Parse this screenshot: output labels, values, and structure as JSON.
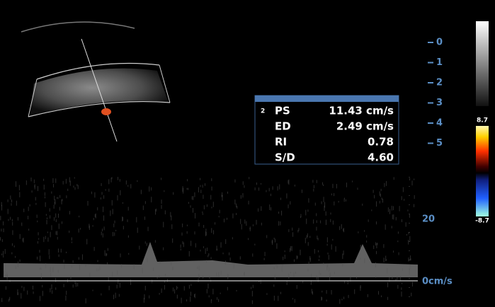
{
  "depth_scale": [
    "0",
    "1",
    "2",
    "3",
    "4",
    "5"
  ],
  "measurements": {
    "index": "2",
    "rows": [
      [
        "PS",
        "11.43 cm/s"
      ],
      [
        "ED",
        "2.49 cm/s"
      ],
      [
        "RI",
        "0.78"
      ],
      [
        "S/D",
        "4.60"
      ]
    ]
  },
  "color_scale": {
    "max": "8.7",
    "min": "-8.7"
  },
  "velocity_scale": {
    "labels": [
      "20",
      "0cm/s"
    ]
  }
}
